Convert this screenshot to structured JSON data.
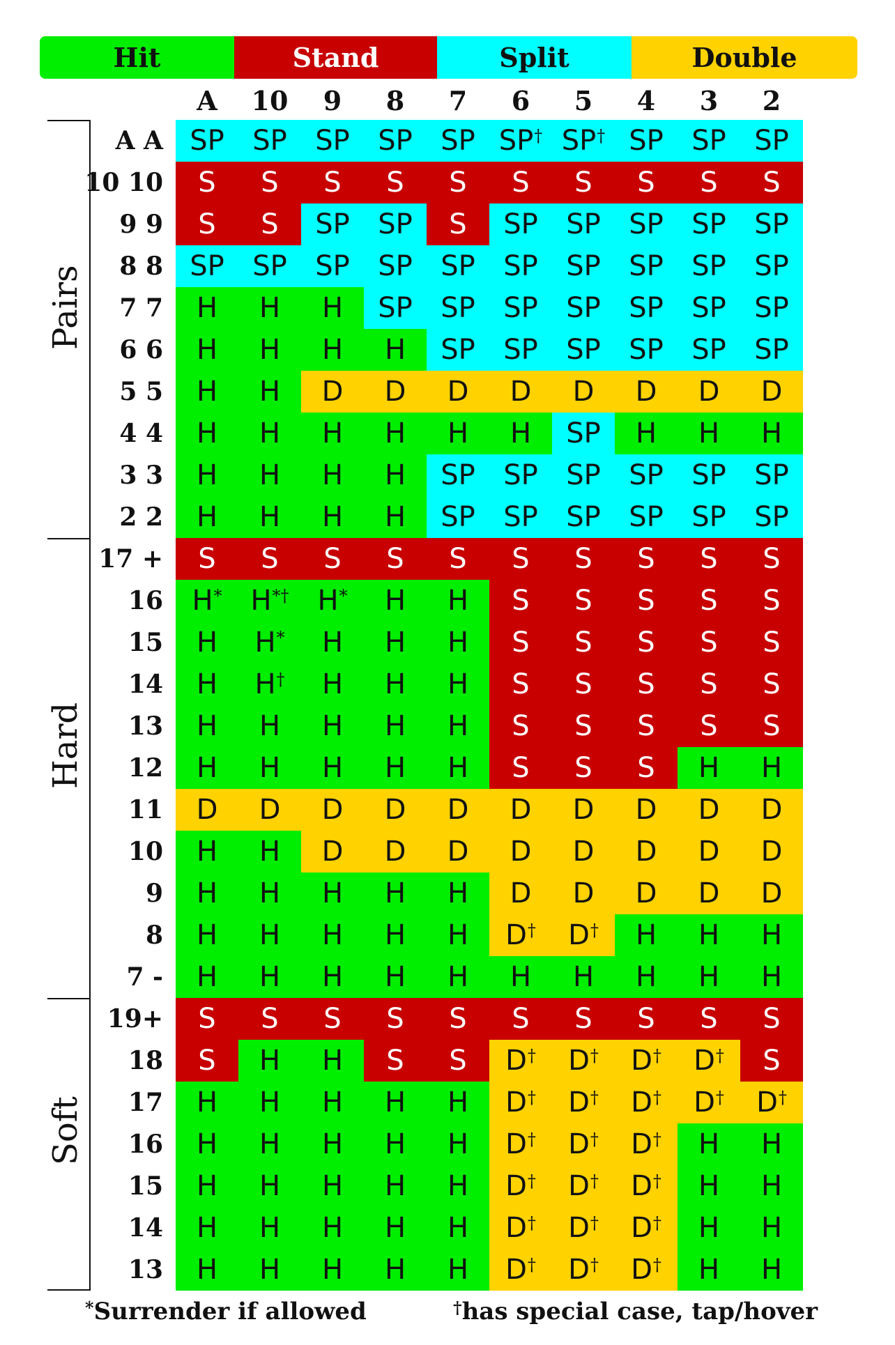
{
  "colors": {
    "hit": "#00ee00",
    "stand": "#c80000",
    "split": "#00ffff",
    "double": "#ffd200"
  },
  "legend": {
    "hit": "Hit",
    "stand": "Stand",
    "split": "Split",
    "double": "Double"
  },
  "dealer_cards": [
    "A",
    "10",
    "9",
    "8",
    "7",
    "6",
    "5",
    "4",
    "3",
    "2"
  ],
  "sections": [
    {
      "title": "Pairs",
      "start_row": 0,
      "row_count": 10
    },
    {
      "title": "Hard",
      "start_row": 10,
      "row_count": 11
    },
    {
      "title": "Soft",
      "start_row": 21,
      "row_count": 7
    }
  ],
  "rows": [
    {
      "label": "A A",
      "cells": [
        "SP",
        "SP",
        "SP",
        "SP",
        "SP",
        "SP†",
        "SP†",
        "SP",
        "SP",
        "SP"
      ]
    },
    {
      "label": "10 10",
      "cells": [
        "S",
        "S",
        "S",
        "S",
        "S",
        "S",
        "S",
        "S",
        "S",
        "S"
      ]
    },
    {
      "label": "9 9",
      "cells": [
        "S",
        "S",
        "SP",
        "SP",
        "S",
        "SP",
        "SP",
        "SP",
        "SP",
        "SP"
      ]
    },
    {
      "label": "8 8",
      "cells": [
        "SP",
        "SP",
        "SP",
        "SP",
        "SP",
        "SP",
        "SP",
        "SP",
        "SP",
        "SP"
      ]
    },
    {
      "label": "7 7",
      "cells": [
        "H",
        "H",
        "H",
        "SP",
        "SP",
        "SP",
        "SP",
        "SP",
        "SP",
        "SP"
      ]
    },
    {
      "label": "6 6",
      "cells": [
        "H",
        "H",
        "H",
        "H",
        "SP",
        "SP",
        "SP",
        "SP",
        "SP",
        "SP"
      ]
    },
    {
      "label": "5 5",
      "cells": [
        "H",
        "H",
        "D",
        "D",
        "D",
        "D",
        "D",
        "D",
        "D",
        "D"
      ]
    },
    {
      "label": "4 4",
      "cells": [
        "H",
        "H",
        "H",
        "H",
        "H",
        "H",
        "SP",
        "H",
        "H",
        "H"
      ]
    },
    {
      "label": "3 3",
      "cells": [
        "H",
        "H",
        "H",
        "H",
        "SP",
        "SP",
        "SP",
        "SP",
        "SP",
        "SP"
      ]
    },
    {
      "label": "2 2",
      "cells": [
        "H",
        "H",
        "H",
        "H",
        "SP",
        "SP",
        "SP",
        "SP",
        "SP",
        "SP"
      ]
    },
    {
      "label": "17 +",
      "cells": [
        "S",
        "S",
        "S",
        "S",
        "S",
        "S",
        "S",
        "S",
        "S",
        "S"
      ]
    },
    {
      "label": "16",
      "cells": [
        "H*",
        "H*†",
        "H*",
        "H",
        "H",
        "S",
        "S",
        "S",
        "S",
        "S"
      ]
    },
    {
      "label": "15",
      "cells": [
        "H",
        "H*",
        "H",
        "H",
        "H",
        "S",
        "S",
        "S",
        "S",
        "S"
      ]
    },
    {
      "label": "14",
      "cells": [
        "H",
        "H†",
        "H",
        "H",
        "H",
        "S",
        "S",
        "S",
        "S",
        "S"
      ]
    },
    {
      "label": "13",
      "cells": [
        "H",
        "H",
        "H",
        "H",
        "H",
        "S",
        "S",
        "S",
        "S",
        "S"
      ]
    },
    {
      "label": "12",
      "cells": [
        "H",
        "H",
        "H",
        "H",
        "H",
        "S",
        "S",
        "S",
        "H",
        "H"
      ]
    },
    {
      "label": "11",
      "cells": [
        "D",
        "D",
        "D",
        "D",
        "D",
        "D",
        "D",
        "D",
        "D",
        "D"
      ]
    },
    {
      "label": "10",
      "cells": [
        "H",
        "H",
        "D",
        "D",
        "D",
        "D",
        "D",
        "D",
        "D",
        "D"
      ]
    },
    {
      "label": "9",
      "cells": [
        "H",
        "H",
        "H",
        "H",
        "H",
        "D",
        "D",
        "D",
        "D",
        "D"
      ]
    },
    {
      "label": "8",
      "cells": [
        "H",
        "H",
        "H",
        "H",
        "H",
        "D†",
        "D†",
        "H",
        "H",
        "H"
      ]
    },
    {
      "label": "7 -",
      "cells": [
        "H",
        "H",
        "H",
        "H",
        "H",
        "H",
        "H",
        "H",
        "H",
        "H"
      ]
    },
    {
      "label": "19+",
      "cells": [
        "S",
        "S",
        "S",
        "S",
        "S",
        "S",
        "S",
        "S",
        "S",
        "S"
      ]
    },
    {
      "label": "18",
      "cells": [
        "S",
        "H",
        "H",
        "S",
        "S",
        "D†",
        "D†",
        "D†",
        "D†",
        "S"
      ]
    },
    {
      "label": "17",
      "cells": [
        "H",
        "H",
        "H",
        "H",
        "H",
        "D†",
        "D†",
        "D†",
        "D†",
        "D†"
      ]
    },
    {
      "label": "16",
      "cells": [
        "H",
        "H",
        "H",
        "H",
        "H",
        "D†",
        "D†",
        "D†",
        "H",
        "H"
      ]
    },
    {
      "label": "15",
      "cells": [
        "H",
        "H",
        "H",
        "H",
        "H",
        "D†",
        "D†",
        "D†",
        "H",
        "H"
      ]
    },
    {
      "label": "14",
      "cells": [
        "H",
        "H",
        "H",
        "H",
        "H",
        "D†",
        "D†",
        "D†",
        "H",
        "H"
      ]
    },
    {
      "label": "13",
      "cells": [
        "H",
        "H",
        "H",
        "H",
        "H",
        "D†",
        "D†",
        "D†",
        "H",
        "H"
      ]
    }
  ],
  "footnotes": {
    "surrender_symbol": "*",
    "surrender_text": "Surrender if allowed",
    "special_symbol": "†",
    "special_text": "has special case, tap/hover"
  }
}
